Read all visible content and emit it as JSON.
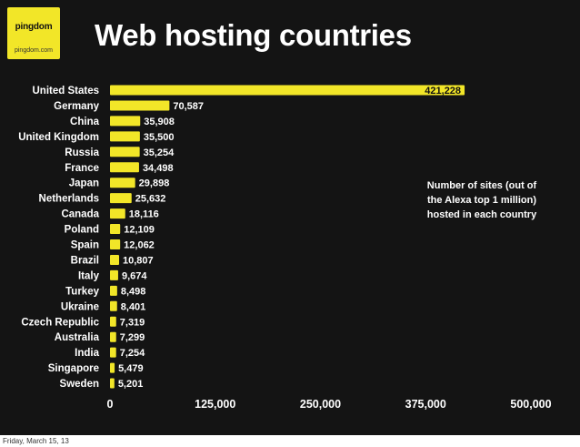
{
  "logo": {
    "brand": "pingdom",
    "url": "pingdom.com"
  },
  "title": "Web hosting countries",
  "note": "Number of sites (out of the Alexa top 1 million) hosted in each country",
  "footer": "Friday, March 15, 13",
  "colors": {
    "background": "#141414",
    "bar": "#f2e628",
    "text": "#ffffff"
  },
  "chart_data": {
    "type": "bar",
    "orientation": "horizontal",
    "categories": [
      "United States",
      "Germany",
      "China",
      "United Kingdom",
      "Russia",
      "France",
      "Japan",
      "Netherlands",
      "Canada",
      "Poland",
      "Spain",
      "Brazil",
      "Italy",
      "Turkey",
      "Ukraine",
      "Czech Republic",
      "Australia",
      "India",
      "Singapore",
      "Sweden"
    ],
    "values": [
      421228,
      70587,
      35908,
      35500,
      35254,
      34498,
      29898,
      25632,
      18116,
      12109,
      12062,
      10807,
      9674,
      8498,
      8401,
      7319,
      7299,
      7254,
      5479,
      5201
    ],
    "value_labels": [
      "421,228",
      "70,587",
      "35,908",
      "35,500",
      "35,254",
      "34,498",
      "29,898",
      "25,632",
      "18,116",
      "12,109",
      "12,062",
      "10,807",
      "9,674",
      "8,498",
      "8,401",
      "7,319",
      "7,299",
      "7,254",
      "5,479",
      "5,201"
    ],
    "xlim": [
      0,
      500000
    ],
    "xticks": [
      0,
      125000,
      250000,
      375000,
      500000
    ],
    "xtick_labels": [
      "0",
      "125,000",
      "250,000",
      "375,000",
      "500,000"
    ],
    "grid": false,
    "legend": "none"
  }
}
